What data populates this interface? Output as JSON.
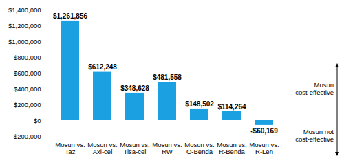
{
  "chart_data": {
    "type": "bar",
    "categories": [
      "Mosun vs.\nTaz",
      "Mosun vs.\nAxi-cel",
      "Mosun vs.\nTisa-cel",
      "Mosun vs.\nRW",
      "Mosun vs.\nO-Benda",
      "Mosun vs.\nR-Benda",
      "Mosun vs.\nR-Len"
    ],
    "values": [
      1261856,
      612248,
      348628,
      481558,
      148502,
      114264,
      -60169
    ],
    "value_labels": [
      "$1,261,856",
      "$612,248",
      "$348,628",
      "$481,558",
      "$148,502",
      "$114,264",
      "-$60,169"
    ],
    "data_labels": true,
    "color": "#1ba1e2",
    "ylim": [
      -200000,
      1400000
    ],
    "yticks": [
      {
        "value": -200000,
        "label": "-$200,000"
      },
      {
        "value": 0,
        "label": "$0"
      },
      {
        "value": 200000,
        "label": "$200,000"
      },
      {
        "value": 400000,
        "label": "$400,000"
      },
      {
        "value": 600000,
        "label": "$600,000"
      },
      {
        "value": 800000,
        "label": "$800,000"
      },
      {
        "value": 1000000,
        "label": "$1,000,000"
      },
      {
        "value": 1200000,
        "label": "$1,200,000"
      },
      {
        "value": 1400000,
        "label": "$1,400,000"
      }
    ],
    "grid": false,
    "annotations": [
      "Mosun cost-effective",
      "Mosun not cost-effective"
    ]
  }
}
